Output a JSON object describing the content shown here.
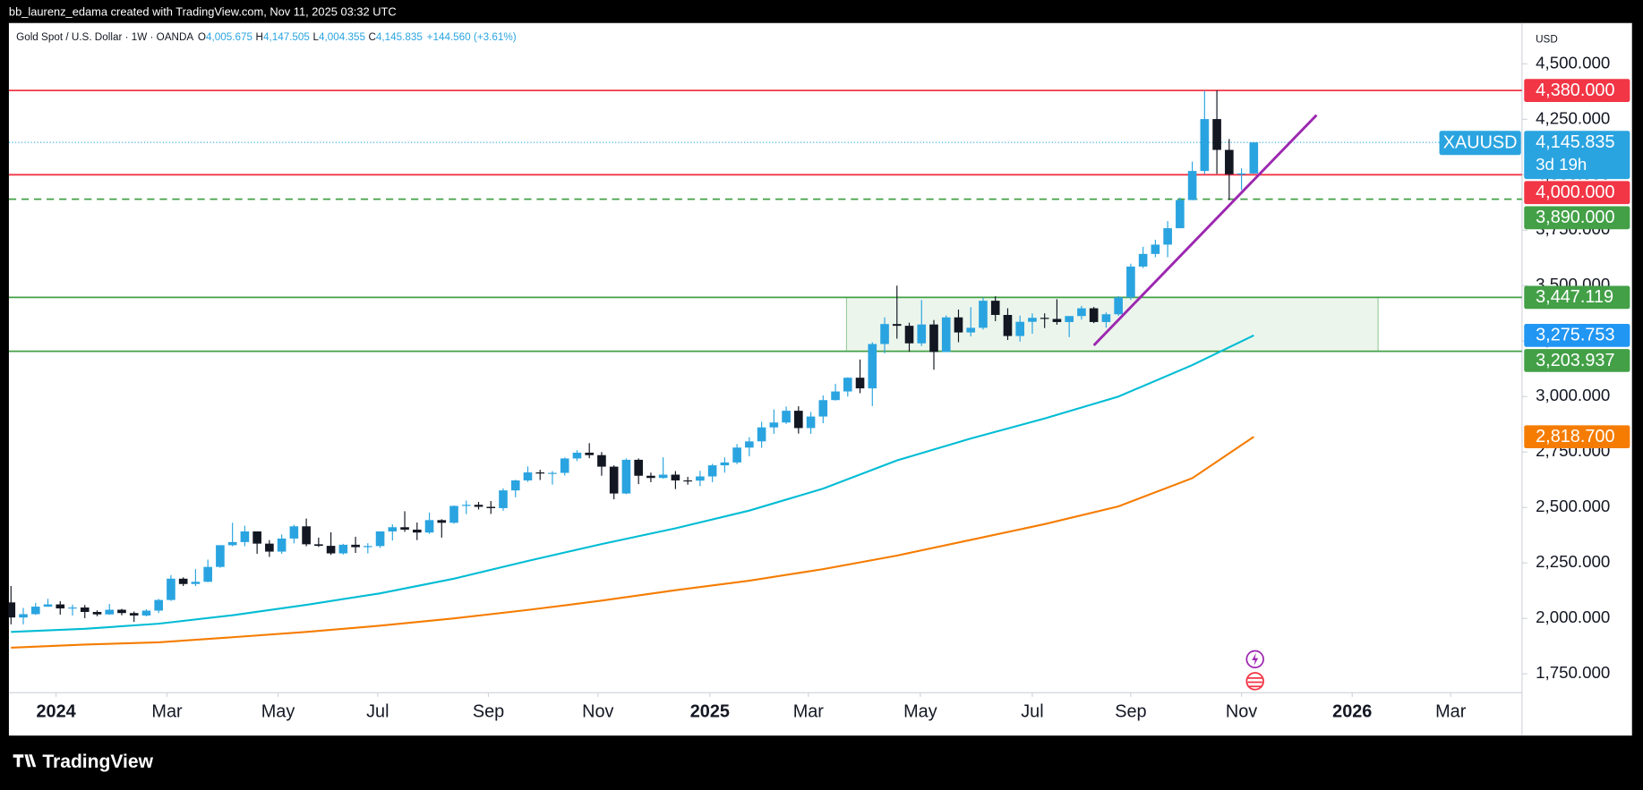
{
  "chart_data": {
    "type": "candlestick",
    "header": "bb_laurenz_edama created with TradingView.com, Nov 11, 2025 03:32 UTC",
    "title": "Gold Spot / U.S. Dollar · 1W · OANDA",
    "legend": [
      {
        "key": "O",
        "value": "4,005.675"
      },
      {
        "key": "H",
        "value": "4,147.505"
      },
      {
        "key": "L",
        "value": "4,004.355"
      },
      {
        "key": "C",
        "value": "4,145.835"
      }
    ],
    "change": "+144.560 (+3.61%)",
    "currency": "USD",
    "footer": "TradingView",
    "up_color": "#2aa4e0",
    "down_color": "#131722",
    "ohlc": [
      [
        2072,
        2146,
        1973,
        2004
      ],
      [
        2004,
        2047,
        1973,
        2019
      ],
      [
        2019,
        2070,
        2016,
        2053
      ],
      [
        2053,
        2088,
        2052,
        2063
      ],
      [
        2063,
        2078,
        2017,
        2045
      ],
      [
        2045,
        2062,
        2013,
        2049
      ],
      [
        2049,
        2060,
        2001,
        2029
      ],
      [
        2029,
        2036,
        2010,
        2018
      ],
      [
        2018,
        2065,
        2016,
        2039
      ],
      [
        2039,
        2043,
        2014,
        2024
      ],
      [
        2024,
        2031,
        1984,
        2013
      ],
      [
        2013,
        2041,
        2009,
        2035
      ],
      [
        2035,
        2088,
        2024,
        2083
      ],
      [
        2083,
        2195,
        2079,
        2179
      ],
      [
        2179,
        2185,
        2146,
        2155
      ],
      [
        2155,
        2222,
        2146,
        2165
      ],
      [
        2165,
        2265,
        2163,
        2232
      ],
      [
        2232,
        2330,
        2228,
        2330
      ],
      [
        2330,
        2431,
        2325,
        2344
      ],
      [
        2344,
        2418,
        2325,
        2392
      ],
      [
        2392,
        2392,
        2291,
        2337
      ],
      [
        2337,
        2353,
        2277,
        2301
      ],
      [
        2301,
        2378,
        2291,
        2360
      ],
      [
        2360,
        2422,
        2338,
        2415
      ],
      [
        2415,
        2450,
        2325,
        2334
      ],
      [
        2334,
        2364,
        2322,
        2327
      ],
      [
        2327,
        2388,
        2286,
        2293
      ],
      [
        2293,
        2336,
        2288,
        2332
      ],
      [
        2332,
        2368,
        2295,
        2321
      ],
      [
        2321,
        2339,
        2293,
        2326
      ],
      [
        2326,
        2392,
        2318,
        2392
      ],
      [
        2392,
        2424,
        2351,
        2411
      ],
      [
        2411,
        2483,
        2390,
        2400
      ],
      [
        2400,
        2432,
        2353,
        2387
      ],
      [
        2387,
        2477,
        2381,
        2443
      ],
      [
        2443,
        2447,
        2364,
        2431
      ],
      [
        2431,
        2509,
        2427,
        2507
      ],
      [
        2507,
        2531,
        2470,
        2512
      ],
      [
        2512,
        2525,
        2491,
        2503
      ],
      [
        2503,
        2529,
        2471,
        2497
      ],
      [
        2497,
        2586,
        2485,
        2577
      ],
      [
        2577,
        2625,
        2546,
        2622
      ],
      [
        2622,
        2685,
        2615,
        2658
      ],
      [
        2658,
        2670,
        2624,
        2653
      ],
      [
        2653,
        2664,
        2603,
        2656
      ],
      [
        2656,
        2725,
        2644,
        2721
      ],
      [
        2721,
        2758,
        2709,
        2747
      ],
      [
        2747,
        2790,
        2722,
        2736
      ],
      [
        2736,
        2750,
        2643,
        2684
      ],
      [
        2684,
        2690,
        2537,
        2563
      ],
      [
        2563,
        2721,
        2560,
        2715
      ],
      [
        2715,
        2721,
        2605,
        2643
      ],
      [
        2643,
        2657,
        2614,
        2633
      ],
      [
        2633,
        2726,
        2630,
        2648
      ],
      [
        2648,
        2664,
        2583,
        2622
      ],
      [
        2622,
        2638,
        2603,
        2621
      ],
      [
        2621,
        2665,
        2596,
        2640
      ],
      [
        2640,
        2697,
        2614,
        2690
      ],
      [
        2690,
        2726,
        2657,
        2703
      ],
      [
        2703,
        2786,
        2695,
        2770
      ],
      [
        2770,
        2817,
        2731,
        2798
      ],
      [
        2798,
        2886,
        2769,
        2861
      ],
      [
        2861,
        2942,
        2832,
        2883
      ],
      [
        2883,
        2955,
        2877,
        2936
      ],
      [
        2936,
        2956,
        2833,
        2858
      ],
      [
        2858,
        2930,
        2832,
        2910
      ],
      [
        2910,
        3005,
        2880,
        2984
      ],
      [
        2984,
        3057,
        2982,
        3023
      ],
      [
        3023,
        3087,
        3000,
        3085
      ],
      [
        3085,
        3167,
        3015,
        3037
      ],
      [
        3037,
        3245,
        2957,
        3237
      ],
      [
        3237,
        3357,
        3195,
        3327
      ],
      [
        3327,
        3500,
        3261,
        3319
      ],
      [
        3319,
        3333,
        3202,
        3240
      ],
      [
        3240,
        3435,
        3228,
        3325
      ],
      [
        3325,
        3345,
        3121,
        3201
      ],
      [
        3201,
        3366,
        3205,
        3357
      ],
      [
        3357,
        3392,
        3245,
        3289
      ],
      [
        3289,
        3403,
        3271,
        3310
      ],
      [
        3310,
        3446,
        3302,
        3432
      ],
      [
        3432,
        3452,
        3340,
        3368
      ],
      [
        3368,
        3398,
        3255,
        3273
      ],
      [
        3273,
        3365,
        3248,
        3337
      ],
      [
        3337,
        3375,
        3283,
        3355
      ],
      [
        3355,
        3375,
        3309,
        3350
      ],
      [
        3350,
        3439,
        3324,
        3336
      ],
      [
        3336,
        3363,
        3268,
        3363
      ],
      [
        3363,
        3409,
        3347,
        3398
      ],
      [
        3398,
        3404,
        3331,
        3336
      ],
      [
        3336,
        3379,
        3311,
        3371
      ],
      [
        3371,
        3453,
        3364,
        3447
      ],
      [
        3447,
        3599,
        3436,
        3586
      ],
      [
        3586,
        3675,
        3579,
        3643
      ],
      [
        3643,
        3707,
        3628,
        3685
      ],
      [
        3685,
        3791,
        3628,
        3759
      ],
      [
        3759,
        3897,
        3759,
        3886
      ],
      [
        3886,
        4059,
        3885,
        4017
      ],
      [
        4017,
        4379,
        4003,
        4251
      ],
      [
        4251,
        4381,
        4004,
        4112
      ],
      [
        4112,
        4161,
        3886,
        4002
      ],
      [
        4002,
        4029,
        3931,
        4006
      ],
      [
        4005.675,
        4147.505,
        4004.355,
        4145.835
      ]
    ],
    "xlim": [
      -0.17,
      122.8
    ],
    "xticks": [
      {
        "value": 3.66,
        "label": "2024"
      },
      {
        "value": 12.68,
        "label": "Mar"
      },
      {
        "value": 21.7,
        "label": "May"
      },
      {
        "value": 29.8,
        "label": "Jul"
      },
      {
        "value": 38.8,
        "label": "Sep"
      },
      {
        "value": 47.7,
        "label": "Nov"
      },
      {
        "value": 56.8,
        "label": "2025"
      },
      {
        "value": 64.8,
        "label": "Mar"
      },
      {
        "value": 73.9,
        "label": "May"
      },
      {
        "value": 83.0,
        "label": "Jul"
      },
      {
        "value": 91.0,
        "label": "Sep"
      },
      {
        "value": 100.0,
        "label": "Nov"
      },
      {
        "value": 109.0,
        "label": "2026"
      },
      {
        "value": 117.0,
        "label": "Mar"
      }
    ],
    "ylim": [
      1665,
      4684
    ],
    "yticks": [
      {
        "value": 4500,
        "label": "4,500.000"
      },
      {
        "value": 4250,
        "label": "4,250.000"
      },
      {
        "value": 4000,
        "label": "4,000.000"
      },
      {
        "value": 3750,
        "label": "3,750.000"
      },
      {
        "value": 3500,
        "label": "3,500.000"
      },
      {
        "value": 3250,
        "label": "3,250.000"
      },
      {
        "value": 3000,
        "label": "3,000.000"
      },
      {
        "value": 2750,
        "label": "2,750.000"
      },
      {
        "value": 2500,
        "label": "2,500.000"
      },
      {
        "value": 2250,
        "label": "2,250.000"
      },
      {
        "value": 2000,
        "label": "2,000.000"
      },
      {
        "value": 1750,
        "label": "1,750.000"
      }
    ],
    "series": [
      {
        "color": "#00bcd4",
        "x": [
          0,
          6,
          12,
          18,
          24,
          30,
          36,
          42,
          48,
          54,
          60,
          66,
          72,
          78,
          84,
          90,
          96,
          101
        ],
        "values": [
          1939,
          1953,
          1976,
          2014,
          2061,
          2113,
          2179,
          2259,
          2335,
          2406,
          2486,
          2585,
          2712,
          2811,
          2901,
          3000,
          3142,
          3275.753
        ],
        "last_label": "3,275.753",
        "tag_color": "#2196f3"
      },
      {
        "color": "#f57c00",
        "x": [
          0,
          6,
          12,
          18,
          24,
          30,
          36,
          42,
          48,
          54,
          60,
          66,
          72,
          78,
          84,
          90,
          96,
          101
        ],
        "values": [
          1868,
          1882,
          1892,
          1915,
          1939,
          1967,
          2000,
          2038,
          2080,
          2127,
          2170,
          2222,
          2283,
          2354,
          2425,
          2505,
          2632,
          2818.7
        ],
        "last_label": "2,818.700",
        "tag_color": "#f57c00"
      }
    ],
    "levels": [
      {
        "value": 4380,
        "label": "4,380.000",
        "color": "#f23645",
        "style": "solid"
      },
      {
        "value": 4000,
        "label": "4,000.000",
        "color": "#f23645",
        "style": "solid"
      },
      {
        "value": 3890,
        "label": "3,890.000",
        "color": "#43a047",
        "style": "dashed"
      },
      {
        "value": 3447.119,
        "label": "3,447.119",
        "color": "#43a047",
        "style": "solid"
      },
      {
        "value": 3203.937,
        "label": "3,203.937",
        "color": "#43a047",
        "style": "solid"
      }
    ],
    "zone": {
      "x": [
        67.9,
        111.1
      ],
      "y": [
        3203.937,
        3447.119
      ],
      "color": "#43a047"
    },
    "trendline": {
      "x": [
        88.0,
        106.1
      ],
      "values": [
        3231,
        4269
      ],
      "color": "#9c27b0"
    },
    "current": {
      "symbol": "XAUUSD",
      "label": "4,145.835",
      "countdown": "3d 19h",
      "color": "#2aa4e0"
    }
  }
}
